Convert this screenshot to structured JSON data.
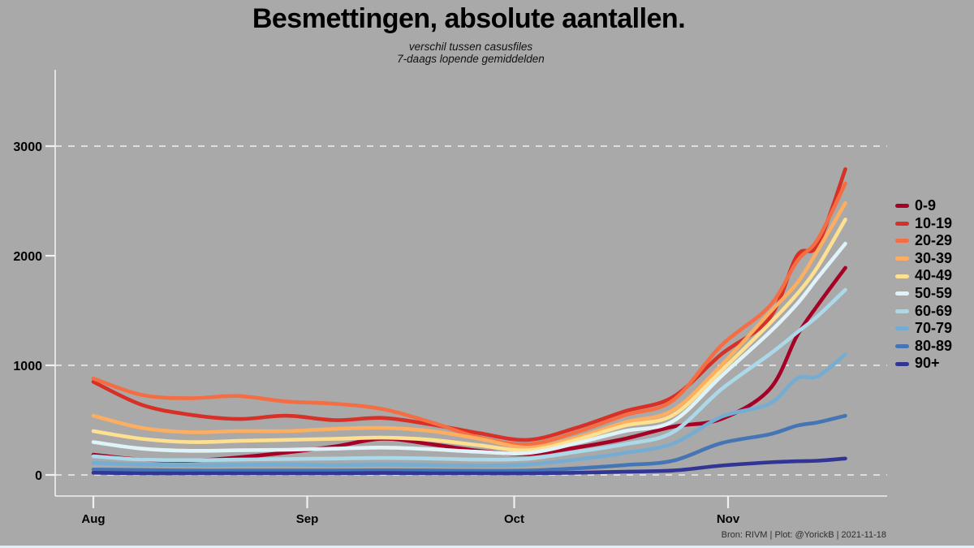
{
  "page": {
    "background_color": "#a9a9a9",
    "axis_color": "#f0f0f0"
  },
  "header": {
    "title": "Besmettingen, absolute aantallen.",
    "subtitle_line1": "verschil tussen casusfiles",
    "subtitle_line2": "7-daags lopende gemiddelden"
  },
  "footer": {
    "credit": "Bron: RIVM | Plot: @YorickB  |  2021-11-18"
  },
  "chart_data": {
    "type": "line",
    "title": "Besmettingen, absolute aantallen.",
    "x_unit": "days since 2021-08-01",
    "x": [
      0,
      7,
      14,
      21,
      28,
      35,
      42,
      49,
      56,
      63,
      70,
      77,
      84,
      91,
      98,
      102,
      105,
      109
    ],
    "x_ticks": [
      {
        "label": "Aug",
        "day": 0
      },
      {
        "label": "Sep",
        "day": 31
      },
      {
        "label": "Oct",
        "day": 61
      },
      {
        "label": "Nov",
        "day": 92
      }
    ],
    "y_ticks": [
      0,
      1000,
      2000,
      3000
    ],
    "gridlines_at": [
      0,
      1000,
      3000
    ],
    "ylim": [
      0,
      3300
    ],
    "grid": "dashed-white",
    "legend_position": "right",
    "series": [
      {
        "name": "0-9",
        "color": "#a50026",
        "values": [
          185,
          140,
          130,
          160,
          205,
          260,
          330,
          280,
          220,
          190,
          250,
          330,
          440,
          510,
          780,
          1270,
          1550,
          1890
        ]
      },
      {
        "name": "10-19",
        "color": "#d73027",
        "values": [
          850,
          640,
          550,
          510,
          540,
          500,
          520,
          460,
          380,
          320,
          430,
          580,
          710,
          1100,
          1430,
          2000,
          2100,
          2790
        ]
      },
      {
        "name": "20-29",
        "color": "#f46d43",
        "values": [
          880,
          730,
          700,
          720,
          670,
          650,
          600,
          480,
          340,
          280,
          390,
          545,
          680,
          1180,
          1540,
          1950,
          2150,
          2660
        ]
      },
      {
        "name": "30-39",
        "color": "#fdae61",
        "values": [
          540,
          430,
          390,
          400,
          400,
          420,
          430,
          400,
          330,
          250,
          340,
          480,
          590,
          1000,
          1480,
          1750,
          2050,
          2480
        ]
      },
      {
        "name": "40-49",
        "color": "#fee090",
        "values": [
          400,
          330,
          300,
          310,
          320,
          330,
          340,
          320,
          270,
          225,
          320,
          450,
          545,
          950,
          1380,
          1650,
          1900,
          2330
        ]
      },
      {
        "name": "50-59",
        "color": "#e0f3f8",
        "values": [
          300,
          240,
          220,
          225,
          230,
          240,
          250,
          235,
          210,
          200,
          290,
          400,
          490,
          900,
          1300,
          1560,
          1800,
          2110
        ]
      },
      {
        "name": "60-69",
        "color": "#abd9e9",
        "values": [
          170,
          140,
          135,
          140,
          145,
          150,
          155,
          150,
          140,
          148,
          210,
          280,
          390,
          780,
          1100,
          1300,
          1450,
          1690
        ]
      },
      {
        "name": "70-79",
        "color": "#74add1",
        "values": [
          110,
          95,
          90,
          92,
          95,
          90,
          95,
          90,
          85,
          95,
          140,
          200,
          285,
          530,
          650,
          880,
          900,
          1100
        ]
      },
      {
        "name": "80-89",
        "color": "#4575b4",
        "values": [
          50,
          45,
          40,
          40,
          40,
          40,
          42,
          40,
          38,
          40,
          60,
          90,
          130,
          290,
          370,
          450,
          480,
          540
        ]
      },
      {
        "name": "90+",
        "color": "#313695",
        "values": [
          20,
          15,
          15,
          15,
          15,
          15,
          18,
          15,
          15,
          15,
          20,
          30,
          40,
          85,
          115,
          125,
          130,
          150
        ]
      }
    ]
  }
}
